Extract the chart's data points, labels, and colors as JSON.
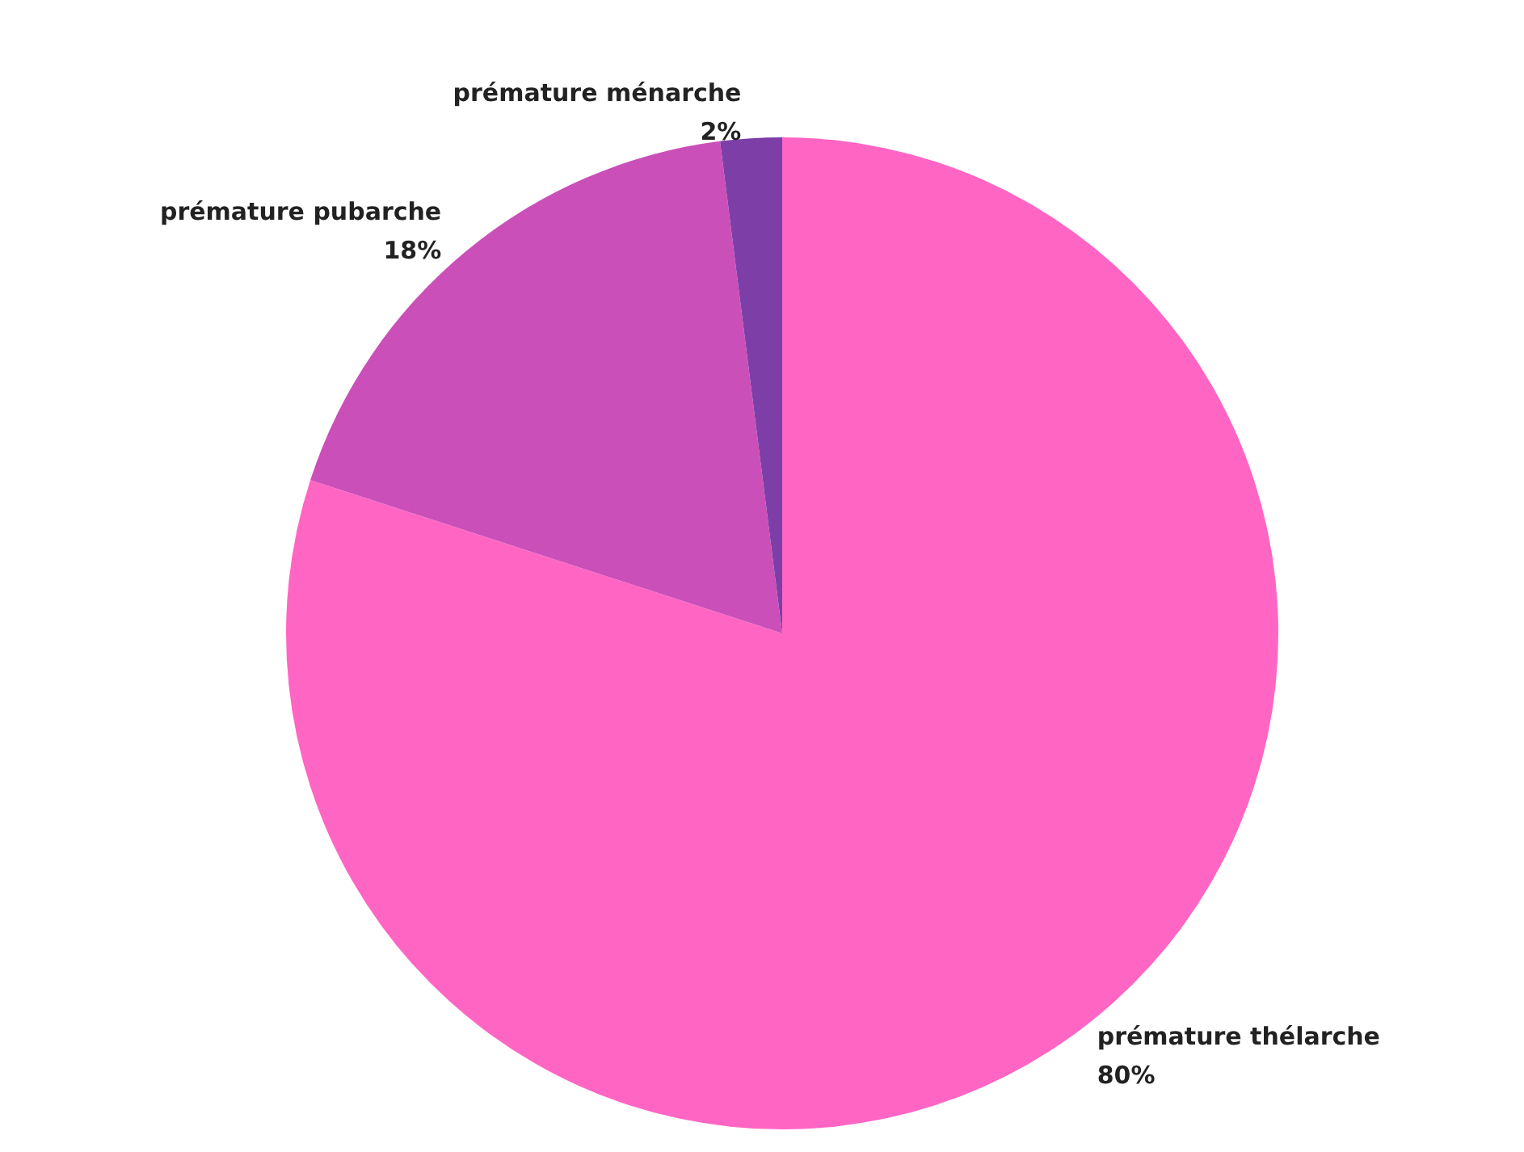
{
  "chart_data": {
    "type": "pie",
    "categories": [
      "prémature thélarche",
      "prémature pubarche",
      "prémature ménarche"
    ],
    "values": [
      80,
      18,
      2
    ],
    "value_labels": [
      "80%",
      "18%",
      "2%"
    ],
    "colors": [
      "#ff66c4",
      "#cb4fb8",
      "#7e3ea8"
    ],
    "legend": false
  }
}
